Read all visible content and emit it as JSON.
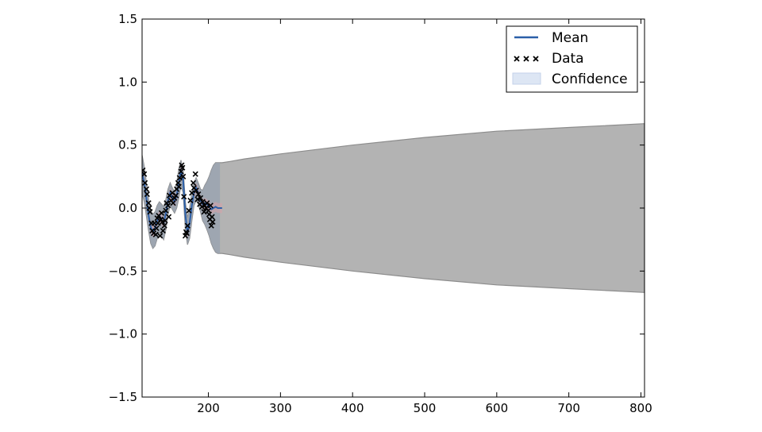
{
  "chart_data": {
    "type": "line",
    "title": "",
    "xlabel": "",
    "ylabel": "",
    "xlim": [
      108,
      805
    ],
    "ylim": [
      -1.5,
      1.5
    ],
    "grid": false,
    "x_ticks": [
      200,
      300,
      400,
      500,
      600,
      700,
      800
    ],
    "x_tick_labels": [
      "200",
      "300",
      "400",
      "500",
      "600",
      "700",
      "800"
    ],
    "y_ticks": [
      1.5,
      1.0,
      0.5,
      0.0,
      -0.5,
      -1.0,
      -1.5
    ],
    "y_tick_labels": [
      "1.5",
      "1.0",
      "0.5",
      "0.0",
      "−0.5",
      "−1.0",
      "−1.5"
    ],
    "legend": {
      "position": "top-right",
      "entries": [
        {
          "label": "Mean",
          "kind": "line",
          "color": "#2b5fa8"
        },
        {
          "label": "Data",
          "kind": "marker",
          "color": "#000000"
        },
        {
          "label": "Confidence",
          "kind": "patch",
          "color": "#dde6f4"
        }
      ]
    },
    "colors": {
      "mean": "#2b5fa8",
      "data": "#000000",
      "confidence_fill": "#b3b3b3",
      "confidence_edge": "#8c8c8c",
      "confidence_inner": "#9aa3b0",
      "observed_band": "#d9a0a8"
    },
    "series": [
      {
        "name": "Mean",
        "kind": "line",
        "x": [
          108,
          111,
          114,
          117,
          120,
          123,
          126,
          129,
          132,
          135,
          138,
          141,
          144,
          147,
          150,
          153,
          156,
          159,
          162,
          165,
          168,
          171,
          174,
          177,
          180,
          183,
          186,
          189,
          192,
          195,
          198,
          201,
          204,
          207,
          210,
          213,
          216,
          219
        ],
        "y": [
          0.28,
          0.2,
          0.08,
          -0.06,
          -0.15,
          -0.19,
          -0.16,
          -0.1,
          -0.06,
          -0.09,
          -0.12,
          -0.04,
          0.06,
          0.12,
          0.08,
          0.05,
          0.1,
          0.2,
          0.3,
          0.22,
          -0.05,
          -0.2,
          -0.12,
          0.02,
          0.12,
          0.16,
          0.12,
          0.06,
          0.03,
          0.04,
          0.03,
          0.01,
          -0.01,
          0.0,
          0.01,
          0.0,
          0.0,
          0.0
        ]
      },
      {
        "name": "Data",
        "kind": "scatter",
        "x": [
          109,
          111,
          112,
          114,
          115,
          117,
          118,
          119,
          121,
          122,
          124,
          125,
          127,
          128,
          129,
          130,
          131,
          133,
          134,
          135,
          136,
          137,
          139,
          140,
          141,
          142,
          144,
          145,
          146,
          148,
          150,
          151,
          153,
          155,
          156,
          158,
          159,
          160,
          162,
          163,
          164,
          165,
          166,
          168,
          169,
          170,
          171,
          173,
          175,
          177,
          179,
          180,
          182,
          183,
          185,
          186,
          188,
          189,
          191,
          192,
          194,
          195,
          197,
          198,
          200,
          201,
          202,
          203,
          204,
          205,
          206
        ],
        "y": [
          0.3,
          0.27,
          0.2,
          0.15,
          0.11,
          0.04,
          0.0,
          -0.03,
          -0.12,
          -0.18,
          -0.2,
          -0.12,
          -0.21,
          -0.16,
          -0.08,
          -0.12,
          -0.06,
          -0.22,
          -0.09,
          -0.04,
          -0.11,
          -0.18,
          -0.14,
          -0.1,
          -0.02,
          0.04,
          0.02,
          -0.07,
          0.1,
          0.06,
          0.12,
          0.04,
          0.08,
          0.1,
          0.15,
          0.2,
          0.17,
          0.24,
          0.29,
          0.34,
          0.32,
          0.25,
          0.09,
          -0.22,
          -0.19,
          -0.2,
          -0.14,
          -0.02,
          0.06,
          0.12,
          0.2,
          0.16,
          0.27,
          0.14,
          0.07,
          0.11,
          0.03,
          0.08,
          0.01,
          0.05,
          -0.03,
          0.02,
          0.0,
          0.04,
          -0.02,
          -0.05,
          -0.09,
          0.02,
          -0.14,
          -0.07,
          -0.11
        ]
      },
      {
        "name": "Confidence",
        "kind": "band",
        "x": [
          108,
          111,
          114,
          117,
          120,
          123,
          126,
          129,
          132,
          135,
          138,
          141,
          144,
          147,
          150,
          153,
          156,
          159,
          162,
          165,
          168,
          171,
          174,
          177,
          180,
          183,
          186,
          189,
          192,
          195,
          198,
          201,
          204,
          207,
          210,
          213,
          216,
          219,
          230,
          250,
          300,
          400,
          500,
          600,
          700,
          805
        ],
        "upper": [
          0.42,
          0.33,
          0.2,
          0.07,
          -0.02,
          -0.05,
          -0.03,
          0.02,
          0.05,
          0.03,
          0.01,
          0.07,
          0.15,
          0.2,
          0.16,
          0.13,
          0.2,
          0.31,
          0.38,
          0.3,
          0.05,
          -0.08,
          0.0,
          0.12,
          0.2,
          0.24,
          0.2,
          0.15,
          0.14,
          0.18,
          0.21,
          0.25,
          0.3,
          0.34,
          0.36,
          0.36,
          0.36,
          0.36,
          0.37,
          0.39,
          0.43,
          0.5,
          0.56,
          0.61,
          0.64,
          0.67
        ],
        "lower": [
          0.12,
          0.05,
          -0.06,
          -0.18,
          -0.28,
          -0.32,
          -0.3,
          -0.24,
          -0.19,
          -0.22,
          -0.25,
          -0.17,
          -0.05,
          0.02,
          -0.01,
          -0.04,
          0.0,
          0.08,
          0.18,
          0.12,
          -0.17,
          -0.29,
          -0.24,
          -0.1,
          0.02,
          0.06,
          0.03,
          -0.03,
          -0.1,
          -0.13,
          -0.17,
          -0.22,
          -0.28,
          -0.32,
          -0.35,
          -0.36,
          -0.36,
          -0.36,
          -0.37,
          -0.39,
          -0.43,
          -0.5,
          -0.56,
          -0.61,
          -0.64,
          -0.67
        ]
      }
    ]
  }
}
